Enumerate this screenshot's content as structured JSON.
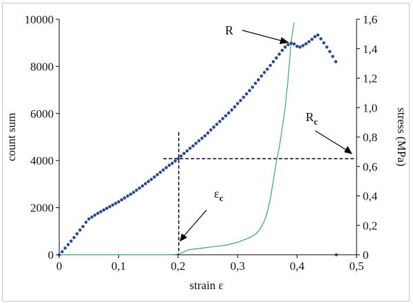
{
  "chart_data": {
    "type": "scatter",
    "x_axis": {
      "label": "strain ε",
      "range": [
        0,
        0.5
      ],
      "ticks": [
        "0",
        "0,1",
        "0,2",
        "0,3",
        "0,4",
        "0,5"
      ]
    },
    "y_left_axis": {
      "label": "count sum",
      "range": [
        0,
        10000
      ],
      "ticks": [
        "0",
        "2000",
        "4000",
        "6000",
        "8000",
        "10000"
      ]
    },
    "y_right_axis": {
      "label": "stress (MPa)",
      "range": [
        0,
        1.6
      ],
      "ticks": [
        "0",
        "0,2",
        "0,4",
        "0,6",
        "0,8",
        "1,0",
        "1,2",
        "1,4",
        "1,6"
      ]
    },
    "series": [
      {
        "axis": "left",
        "style": "dots",
        "color": "#2e4a8c",
        "points": [
          [
            0.0,
            0
          ],
          [
            0.005,
            130
          ],
          [
            0.01,
            280
          ],
          [
            0.015,
            430
          ],
          [
            0.02,
            580
          ],
          [
            0.025,
            730
          ],
          [
            0.03,
            890
          ],
          [
            0.035,
            1050
          ],
          [
            0.04,
            1200
          ],
          [
            0.045,
            1380
          ],
          [
            0.05,
            1520
          ],
          [
            0.055,
            1600
          ],
          [
            0.06,
            1680
          ],
          [
            0.065,
            1760
          ],
          [
            0.07,
            1830
          ],
          [
            0.075,
            1900
          ],
          [
            0.08,
            1970
          ],
          [
            0.085,
            2040
          ],
          [
            0.09,
            2110
          ],
          [
            0.095,
            2180
          ],
          [
            0.1,
            2250
          ],
          [
            0.105,
            2330
          ],
          [
            0.11,
            2410
          ],
          [
            0.115,
            2490
          ],
          [
            0.12,
            2570
          ],
          [
            0.125,
            2650
          ],
          [
            0.13,
            2740
          ],
          [
            0.135,
            2830
          ],
          [
            0.14,
            2920
          ],
          [
            0.145,
            3020
          ],
          [
            0.15,
            3110
          ],
          [
            0.155,
            3200
          ],
          [
            0.16,
            3300
          ],
          [
            0.165,
            3400
          ],
          [
            0.17,
            3500
          ],
          [
            0.175,
            3600
          ],
          [
            0.18,
            3700
          ],
          [
            0.185,
            3800
          ],
          [
            0.19,
            3880
          ],
          [
            0.195,
            3980
          ],
          [
            0.2,
            4080
          ],
          [
            0.205,
            4190
          ],
          [
            0.21,
            4300
          ],
          [
            0.215,
            4410
          ],
          [
            0.22,
            4520
          ],
          [
            0.225,
            4620
          ],
          [
            0.23,
            4730
          ],
          [
            0.235,
            4840
          ],
          [
            0.24,
            4950
          ],
          [
            0.245,
            5050
          ],
          [
            0.25,
            5170
          ],
          [
            0.255,
            5300
          ],
          [
            0.26,
            5420
          ],
          [
            0.265,
            5540
          ],
          [
            0.27,
            5660
          ],
          [
            0.275,
            5780
          ],
          [
            0.28,
            5900
          ],
          [
            0.285,
            6020
          ],
          [
            0.29,
            6150
          ],
          [
            0.295,
            6280
          ],
          [
            0.3,
            6420
          ],
          [
            0.305,
            6550
          ],
          [
            0.31,
            6690
          ],
          [
            0.315,
            6830
          ],
          [
            0.32,
            6970
          ],
          [
            0.325,
            7120
          ],
          [
            0.33,
            7280
          ],
          [
            0.335,
            7430
          ],
          [
            0.34,
            7590
          ],
          [
            0.345,
            7740
          ],
          [
            0.35,
            7880
          ],
          [
            0.355,
            8040
          ],
          [
            0.36,
            8200
          ],
          [
            0.365,
            8360
          ],
          [
            0.37,
            8520
          ],
          [
            0.375,
            8680
          ],
          [
            0.38,
            8820
          ],
          [
            0.385,
            8920
          ],
          [
            0.39,
            8980
          ],
          [
            0.395,
            8950
          ],
          [
            0.4,
            8850
          ],
          [
            0.405,
            8820
          ],
          [
            0.41,
            8880
          ],
          [
            0.415,
            8960
          ],
          [
            0.42,
            9050
          ],
          [
            0.425,
            9150
          ],
          [
            0.43,
            9260
          ],
          [
            0.435,
            9330
          ],
          [
            0.44,
            9170
          ],
          [
            0.445,
            9000
          ],
          [
            0.45,
            8820
          ],
          [
            0.455,
            8630
          ],
          [
            0.46,
            8420
          ],
          [
            0.465,
            8200
          ],
          [
            0.466,
            0
          ]
        ]
      },
      {
        "axis": "right",
        "style": "line",
        "color": "#3aa36a",
        "points": [
          [
            0.18,
            0.0
          ],
          [
            0.195,
            0.002
          ],
          [
            0.2,
            0.005
          ],
          [
            0.205,
            0.012
          ],
          [
            0.21,
            0.02
          ],
          [
            0.215,
            0.03
          ],
          [
            0.22,
            0.035
          ],
          [
            0.23,
            0.04
          ],
          [
            0.24,
            0.045
          ],
          [
            0.25,
            0.05
          ],
          [
            0.26,
            0.055
          ],
          [
            0.27,
            0.06
          ],
          [
            0.28,
            0.065
          ],
          [
            0.29,
            0.075
          ],
          [
            0.3,
            0.085
          ],
          [
            0.31,
            0.1
          ],
          [
            0.32,
            0.115
          ],
          [
            0.33,
            0.14
          ],
          [
            0.335,
            0.16
          ],
          [
            0.34,
            0.19
          ],
          [
            0.345,
            0.23
          ],
          [
            0.35,
            0.29
          ],
          [
            0.355,
            0.38
          ],
          [
            0.36,
            0.5
          ],
          [
            0.365,
            0.63
          ],
          [
            0.37,
            0.73
          ],
          [
            0.375,
            0.86
          ],
          [
            0.38,
            1.0
          ],
          [
            0.385,
            1.2
          ],
          [
            0.39,
            1.45
          ],
          [
            0.395,
            1.58
          ]
        ]
      }
    ],
    "annotations": {
      "R": {
        "text": "R"
      },
      "Rc": {
        "text": "R",
        "subscript": "c"
      },
      "eps_c": {
        "text": "ε",
        "subscript": "c"
      }
    },
    "reference_lines": {
      "vertical_x": 0.201,
      "horizontal_y_left": 4080
    },
    "grid": false,
    "legend": "none"
  }
}
